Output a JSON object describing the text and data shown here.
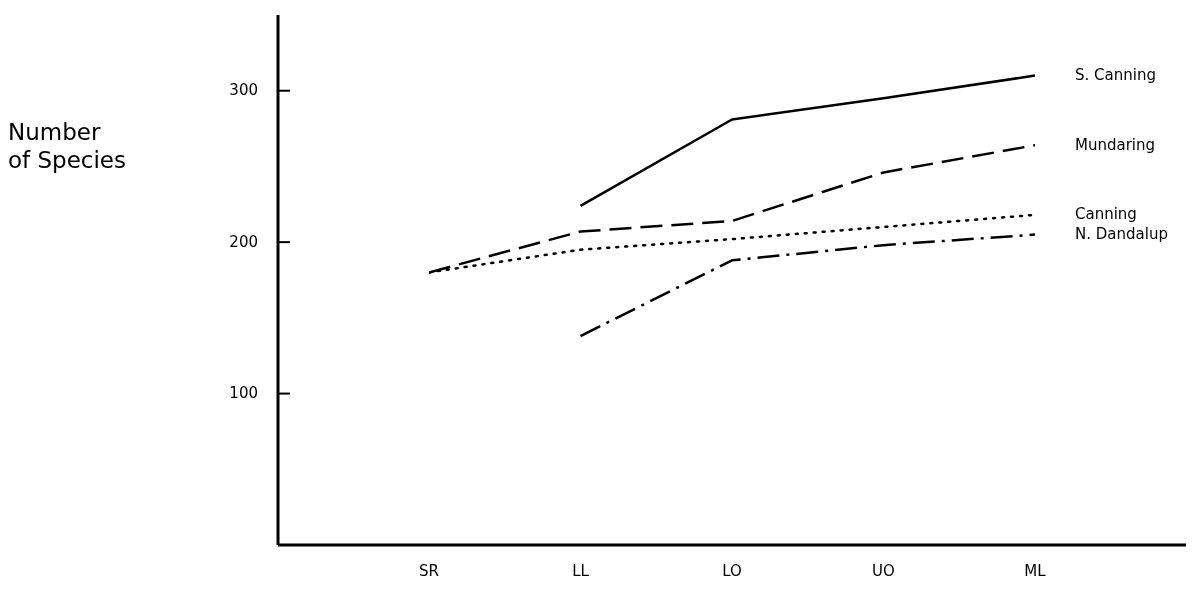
{
  "chart_data": {
    "type": "line",
    "ylabel": "Number\nof Species",
    "categories": [
      "SR",
      "LL",
      "LO",
      "UO",
      "ML"
    ],
    "series": [
      {
        "name": "S. Canning",
        "color": "#000000",
        "line_style": "solid",
        "values": [
          null,
          224,
          281,
          295,
          310
        ]
      },
      {
        "name": "Mundaring",
        "color": "#000000",
        "line_style": "dashed",
        "values": [
          180,
          207,
          214,
          246,
          264
        ]
      },
      {
        "name": "Canning",
        "color": "#000000",
        "line_style": "dotted",
        "values": [
          180,
          195,
          202,
          210,
          218
        ]
      },
      {
        "name": "N. Dandalup",
        "color": "#000000",
        "line_style": "dashdot",
        "values": [
          null,
          138,
          188,
          198,
          205
        ]
      }
    ],
    "ylim": [
      0,
      350
    ],
    "yticks": [
      100,
      200,
      300
    ],
    "grid": false,
    "legend": false,
    "marker": "none"
  }
}
